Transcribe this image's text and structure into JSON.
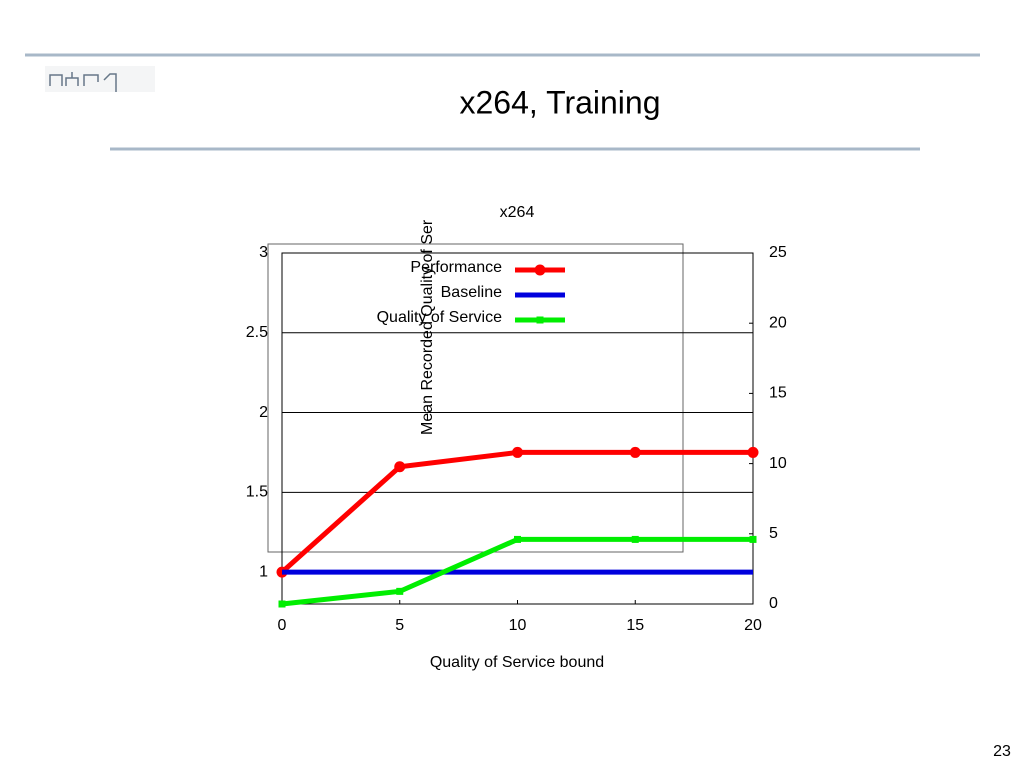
{
  "slide": {
    "title": "x264, Training",
    "page_number": "23"
  },
  "chart_data": {
    "type": "line",
    "title": "x264",
    "x_label": "Quality of Service bound",
    "y_label": "Mean Recorded Quality of Ser",
    "x": [
      0,
      5,
      10,
      15,
      20
    ],
    "series": [
      {
        "name": "Performance",
        "color": "#ff0000",
        "marker": "circle",
        "values": [
          1,
          1.66,
          1.75,
          1.75,
          1.75
        ]
      },
      {
        "name": "Baseline",
        "color": "#0000dd",
        "marker": "none",
        "values": [
          1,
          1,
          1,
          1,
          1
        ]
      },
      {
        "name": "Quality of Service",
        "color": "#00ee00",
        "marker": "square",
        "axis": "y2",
        "values": [
          0,
          0.9,
          4.6,
          4.6,
          4.6
        ]
      }
    ],
    "xlim": [
      0,
      20
    ],
    "xticks": [
      0,
      5,
      10,
      15,
      20
    ],
    "ylim": [
      0.8,
      3
    ],
    "yticks": [
      1,
      1.5,
      2,
      2.5,
      3
    ],
    "y2lim": [
      0,
      25
    ],
    "y2ticks": [
      0,
      5,
      10,
      15,
      20,
      25
    ],
    "grid": true,
    "legend": "top"
  }
}
